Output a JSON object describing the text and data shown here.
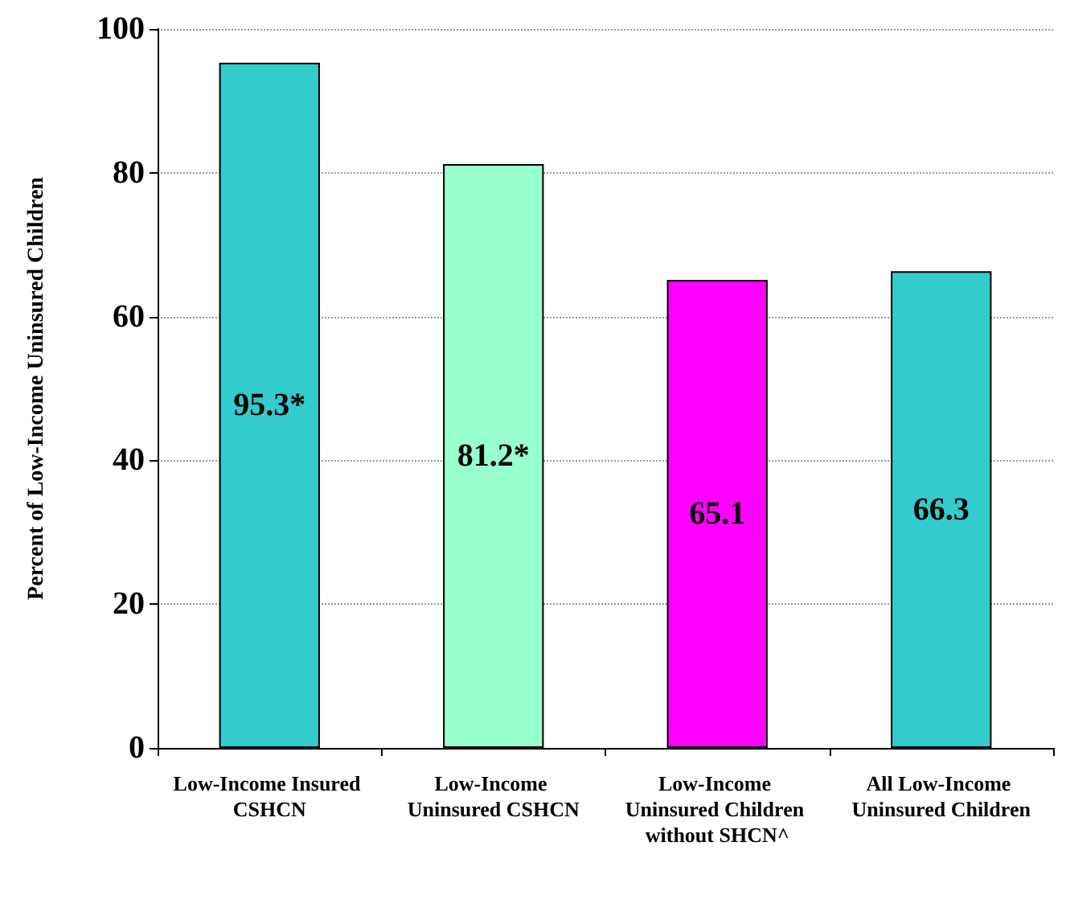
{
  "chart_data": {
    "type": "bar",
    "ylabel": "Percent of Low-Income Uninsured Children",
    "categories": [
      "Low-Income Insured CSHCN",
      "Low-Income Uninsured CSHCN",
      "Low-Income Uninsured Children without SHCN^",
      "All Low-Income Uninsured Children"
    ],
    "values": [
      95.3,
      81.2,
      65.1,
      66.3
    ],
    "value_labels": [
      "95.3*",
      "81.2*",
      "65.1",
      "66.3"
    ],
    "colors": [
      "#33cccc",
      "#99ffcc",
      "#ff00ff",
      "#33cccc"
    ],
    "ylim": [
      0,
      100
    ],
    "yticks": [
      0,
      20,
      40,
      60,
      80,
      100
    ],
    "grid": "y"
  }
}
